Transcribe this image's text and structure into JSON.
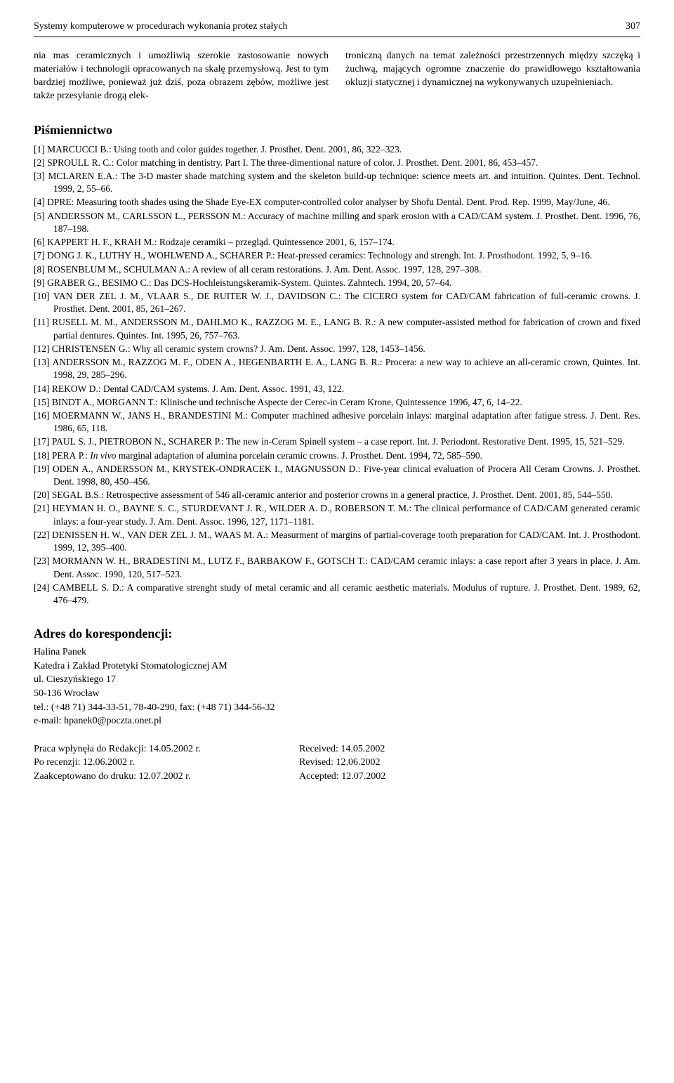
{
  "header": {
    "title": "Systemy komputerowe w procedurach wykonania protez stałych",
    "page": "307"
  },
  "body": {
    "left": "nia mas ceramicznych i umożliwią szerokie zasto­sowanie nowych materiałów i technologii opraco­wanych na skalę przemysłową. Jest to tym bar­dziej możliwe, ponieważ już dziś, poza obrazem zębów, możliwe jest także przesyłanie drogą elek-",
    "right": "troniczną danych na temat zależności przestrzen­nych między szczęką i żuchwą, mających ogrom­ne znaczenie do prawidłowego kształtowania okluzji statycznej i dynamicznej na wykonywa­nych uzupełnieniach."
  },
  "sections": {
    "refs_title": "Piśmiennictwo",
    "addr_title": "Adres do korespondencji:"
  },
  "refs": [
    "[1] MARCUCCI B.: Using tooth and color guides together. J. Prosthet. Dent. 2001, 86, 322–323.",
    "[2] SPROULL R. C.: Color matching in dentistry. Part I. The three-dimentional nature of color. J. Prosthet. Dent. 2001, 86, 453–457.",
    "[3] MCLAREN E.A.: The 3-D master shade matching system and the skeleton build-up technique: science meets art. and intuition. Quintes. Dent. Technol. 1999, 2, 55–66.",
    "[4] DPRE: Measuring tooth shades using the Shade Eye-EX computer-controlled color analyser by Shofu Dental. Dent. Prod. Rep. 1999, May/June, 46.",
    "[5] ANDERSSON M., CARLSSON L., PERSSON M.: Accuracy of machine milling and spark erosion with a CAD/CAM sy­stem. J. Prosthet. Dent. 1996, 76, 187–198.",
    "[6] KAPPERT H. F., KRAH M.: Rodzaje ceramiki – przegląd. Quintessence 2001, 6, 157–174.",
    "[7] DONG J. K., LUTHY H., WOHLWEND A., SCHARER P.: Heat-pressed ceramics: Technology and strengh. Int. J. Pro­sthodont. 1992, 5, 9–16.",
    "[8] ROSENBLUM M., SCHULMAN A.: A review of all ceram restorations. J. Am. Dent. Assoc. 1997, 128, 297–308.",
    "[9] GRABER G., BESIMO C.: Das DCS-Hochleistungskeramik-System. Quintes. Zahntech. 1994, 20, 57–64.",
    "[10] VAN DER ZEL J. M., VLAAR S., DE RUITER W. J., DAVIDSON C.: The CICERO system for CAD/CAM fabrication of full-ceramic crowns. J. Prosthet. Dent. 2001, 85, 261–267.",
    "[11] RUSELL M. M., ANDERSSON M., DAHLMO K., RAZZOG M. E., LANG B. R.: A new computer-assisted method for fa­brication of crown and fixed partial dentures. Quintes. Int. 1995, 26, 757–763.",
    "[12] CHRISTENSEN G.: Why all ceramic system crowns? J. Am. Dent. Assoc. 1997, 128, 1453–1456.",
    "[13] ANDERSSON M., RAZZOG M. F., ODEN A., HEGENBARTH E. A., LANG B. R.: Procera: a new way to achieve an all-ceramic crown, Quintes. Int. 1998, 29, 285–296.",
    "[14] REKOW D.: Dental CAD/CAM systems. J. Am. Dent. Assoc. 1991, 43, 122.",
    "[15] BINDT A., MORGANN T.: Klinische und technische Aspecte der Cerec-in Ceram Krone, Quintessence 1996, 47, 6, 14–22.",
    "[16] MOERMANN W., JANS H., BRANDESTINI M.: Computer machined adhesive porcelain inlays: marginal adaptation after fatigue stress. J. Dent. Res. 1986, 65, 118.",
    "[17] PAUL S. J., PIETROBON N., SCHARER P.: The new in-Ceram Spinell system – a case report. Int. J. Periodont. Restorative Dent. 1995, 15, 521–529.",
    "[18] PERA P.: In vivo marginal adaptation of alumina porcelain ceramic crowns. J. Prosthet. Dent. 1994, 72, 585–590.",
    "[19] ODEN A., ANDERSSON M., KRYSTEK-ONDRACEK I., MAGNUSSON D.: Five-year clinical evaluation of Procera All Ce­ram Crowns. J. Prosthet. Dent. 1998, 80, 450–456.",
    "[20] SEGAL B.S.: Retrospective assessment of 546 all-ceramic anterior and posterior crowns in a general practice, J. Prosthet. Dent. 2001, 85, 544–550.",
    "[21] HEYMAN H. O., BAYNE S. C., STURDEVANT J. R., WILDER A. D., ROBERSON T. M.: The clinical performance of CAD/CAM generated ceramic inlays: a four-year study. J. Am. Dent. Assoc. 1996, 127, 1171–1181.",
    "[22] DENISSEN H. W., VAN DER ZEL J. M., WAAS M. A.: Measurment of margins of partial-coverage tooth preparation for CAD/CAM. Int. J. Prosthodont. 1999, 12, 395–400.",
    "[23] MORMANN W. H., BRADESTINI M., LUTZ F., BARBAKOW F., GOTSCH T.: CAD/CAM ceramic inlays: a case report after 3 years in place. J. Am. Dent. Assoc. 1990, 120, 517–523.",
    "[24] CAMBELL S. D.: A comparative strenght study of metal ceramic and all ceramic aesthetic materials. Modulus of rupture. J. Prosthet. Dent. 1989, 62, 476–479."
  ],
  "address": {
    "name": "Halina Panek",
    "dept": "Katedra i Zakład Protetyki Stomatologicznej AM",
    "street": "ul. Cieszyńskiego 17",
    "city": "50-136 Wrocław",
    "tel": "tel.: (+48 71) 344-33-51, 78-40-290, fax: (+48 71) 344-56-32",
    "email": "e-mail: hpanek0@poczta.onet.pl"
  },
  "dates": {
    "pl": [
      "Praca wpłynęła do Redakcji: 14.05.2002 r.",
      "Po recenzji: 12.06.2002 r.",
      "Zaakceptowano do druku: 12.07.2002 r."
    ],
    "en": [
      "Received: 14.05.2002",
      "Revised: 12.06.2002",
      "Accepted: 12.07.2002"
    ]
  }
}
